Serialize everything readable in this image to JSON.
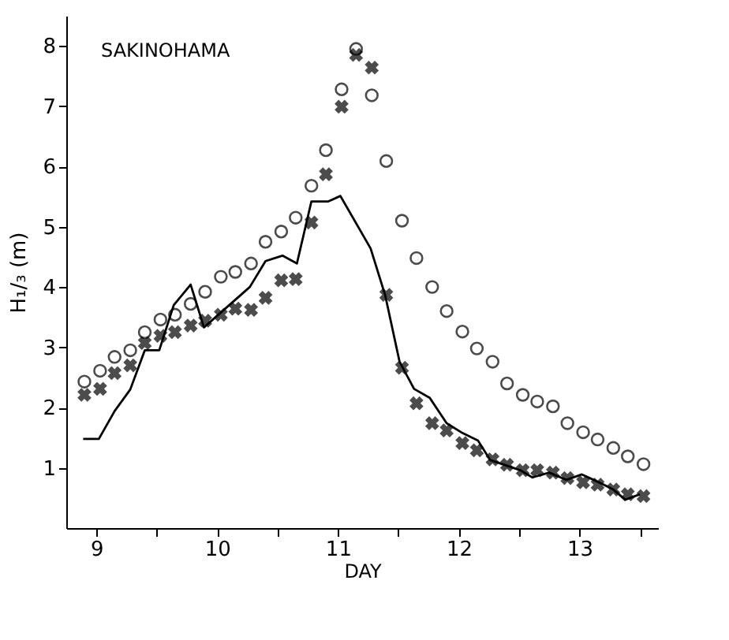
{
  "chart_data": {
    "type": "scatter",
    "xlabel": "DAY",
    "ylabel": "H₁/₃ (m)",
    "annotations": [
      "SAKINOHAMA"
    ],
    "xlim": [
      8.75,
      13.65
    ],
    "ylim": [
      0,
      8.5
    ],
    "xticks": [
      9,
      {
        "value": 9.5,
        "label": null
      },
      10,
      {
        "value": 10.5,
        "label": null
      },
      11,
      {
        "value": 11.5,
        "label": null
      },
      12,
      {
        "value": 12.5,
        "label": null
      },
      13,
      {
        "value": 13.5,
        "label": null
      }
    ],
    "yticks": [
      1,
      2,
      3,
      4,
      5,
      6,
      7,
      8
    ],
    "grid": false,
    "x": [
      8.9,
      9.03,
      9.15,
      9.28,
      9.4,
      9.53,
      9.65,
      9.78,
      9.9,
      10.03,
      10.15,
      10.28,
      10.4,
      10.53,
      10.65,
      10.78,
      10.9,
      11.03,
      11.15,
      11.28,
      11.4,
      11.53,
      11.65,
      11.78,
      11.9,
      12.03,
      12.15,
      12.28,
      12.4,
      12.53,
      12.65,
      12.78,
      12.9,
      13.03,
      13.15,
      13.28,
      13.4,
      13.53
    ],
    "series": [
      {
        "type": "scatter",
        "marker": "circle",
        "color": "#000000",
        "values": [
          2.43,
          2.61,
          2.84,
          2.95,
          3.25,
          3.46,
          3.54,
          3.72,
          3.92,
          4.17,
          4.25,
          4.39,
          4.75,
          4.92,
          5.15,
          5.68,
          6.27,
          7.28,
          7.95,
          7.18,
          6.09,
          5.1,
          4.48,
          4.0,
          3.6,
          3.26,
          2.98,
          2.76,
          2.4,
          2.21,
          2.1,
          2.02,
          1.74,
          1.59,
          1.47,
          1.33,
          1.19,
          1.06
        ]
      },
      {
        "type": "scatter",
        "marker": "cross",
        "color": "#000000",
        "values": [
          2.21,
          2.31,
          2.57,
          2.7,
          3.07,
          3.19,
          3.25,
          3.36,
          3.44,
          3.54,
          3.64,
          3.62,
          3.82,
          4.11,
          4.13,
          5.07,
          5.87,
          6.99,
          7.85,
          7.64,
          3.87,
          2.66,
          2.07,
          1.74,
          1.62,
          1.41,
          1.29,
          1.14,
          1.05,
          0.96,
          0.96,
          0.92,
          0.83,
          0.76,
          0.72,
          0.64,
          0.56,
          0.53
        ]
      },
      {
        "type": "line",
        "marker": "none",
        "line_style": "solid",
        "color": "#000000",
        "x": [
          8.89,
          9.02,
          9.15,
          9.28,
          9.4,
          9.52,
          9.64,
          9.78,
          9.89,
          10.27,
          10.4,
          10.54,
          10.66,
          10.78,
          10.92,
          11.02,
          11.27,
          11.39,
          11.51,
          11.63,
          11.76,
          11.9,
          12.02,
          12.16,
          12.26,
          12.51,
          12.61,
          12.75,
          12.89,
          13.02,
          13.16,
          13.28,
          13.38,
          13.5
        ],
        "values": [
          1.48,
          1.48,
          1.94,
          2.3,
          2.95,
          2.95,
          3.7,
          4.04,
          3.33,
          4.0,
          4.43,
          4.52,
          4.39,
          5.42,
          5.42,
          5.51,
          4.64,
          3.87,
          2.76,
          2.31,
          2.16,
          1.74,
          1.59,
          1.45,
          1.13,
          0.96,
          0.84,
          0.92,
          0.8,
          0.89,
          0.76,
          0.64,
          0.47,
          0.56
        ]
      }
    ]
  }
}
